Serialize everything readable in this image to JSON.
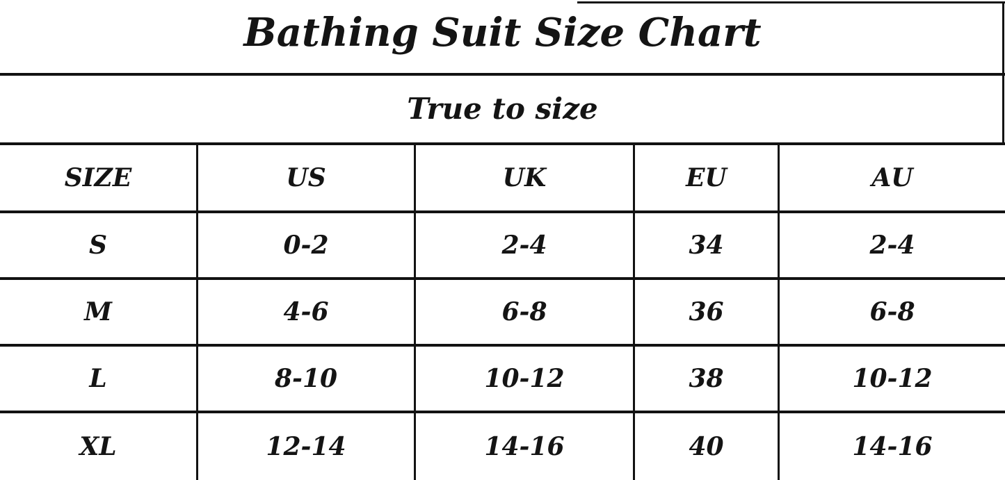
{
  "title": "Bathing Suit Size Chart",
  "fit_note": "True to size",
  "table": {
    "columns": [
      {
        "label": "SIZE"
      },
      {
        "label": "US"
      },
      {
        "label": "UK"
      },
      {
        "label": "EU"
      },
      {
        "label": "AU"
      }
    ],
    "rows": [
      {
        "cells": [
          "S",
          "0-2",
          "2-4",
          "34",
          "2-4"
        ]
      },
      {
        "cells": [
          "M",
          "4-6",
          "6-8",
          "36",
          "6-8"
        ]
      },
      {
        "cells": [
          "L",
          "8-10",
          "10-12",
          "38",
          "10-12"
        ]
      },
      {
        "cells": [
          "XL",
          "12-14",
          "14-16",
          "40",
          "14-16"
        ]
      }
    ]
  },
  "colors": {
    "border": "#121212",
    "background": "#ffffff",
    "text": "#141414"
  }
}
